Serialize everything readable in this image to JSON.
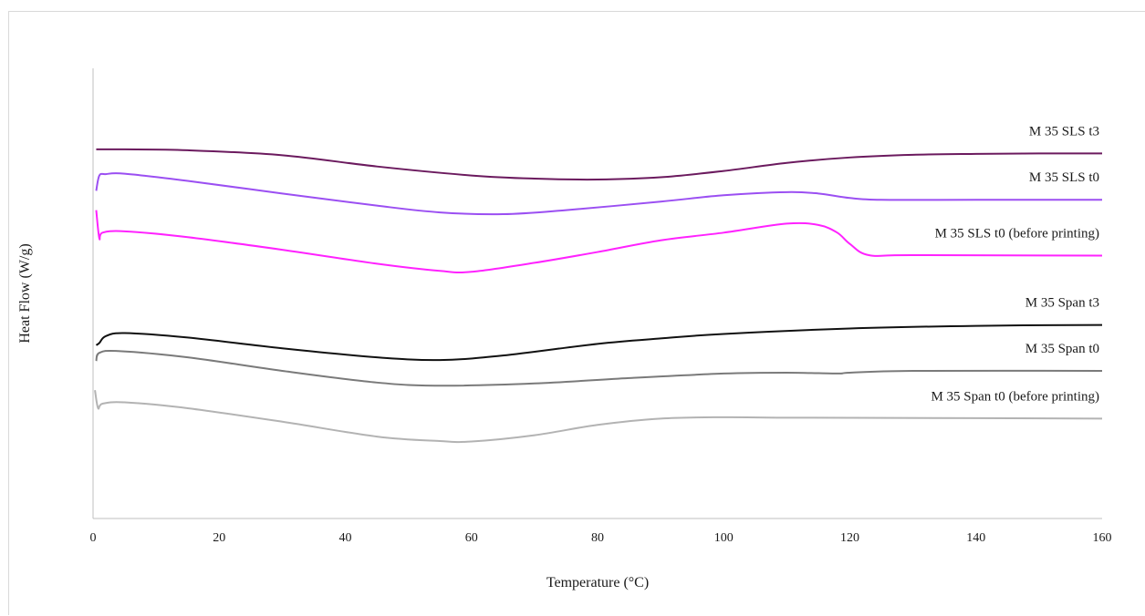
{
  "chart_data": {
    "type": "line",
    "title": "",
    "xlabel": "Temperature (°C)",
    "ylabel": "Heat Flow (W/g)",
    "xlim": [
      0,
      160
    ],
    "x_ticks": [
      0,
      20,
      40,
      60,
      80,
      100,
      120,
      140,
      160
    ],
    "y_ticks_shown": false,
    "grid": false,
    "legend": "none (series labelled directly on the plot)",
    "y_units_note": "relative, stacked curves (no y tick labels shown)",
    "series": [
      {
        "name": "M 35 SLS t3",
        "color": "#6b1a5e",
        "label_position": "above-right",
        "points": [
          [
            0.5,
            8.2
          ],
          [
            5,
            8.2
          ],
          [
            15,
            8.18
          ],
          [
            30,
            8.07
          ],
          [
            45,
            7.82
          ],
          [
            60,
            7.62
          ],
          [
            70,
            7.55
          ],
          [
            80,
            7.53
          ],
          [
            90,
            7.58
          ],
          [
            100,
            7.72
          ],
          [
            110,
            7.9
          ],
          [
            120,
            8.02
          ],
          [
            130,
            8.08
          ],
          [
            140,
            8.1
          ],
          [
            150,
            8.11
          ],
          [
            160,
            8.11
          ]
        ]
      },
      {
        "name": "M 35 SLS t0",
        "color": "#9b4ff2",
        "label_position": "above-right",
        "points": [
          [
            0.5,
            7.28
          ],
          [
            1,
            7.62
          ],
          [
            2,
            7.65
          ],
          [
            5,
            7.66
          ],
          [
            15,
            7.5
          ],
          [
            30,
            7.22
          ],
          [
            45,
            6.95
          ],
          [
            55,
            6.8
          ],
          [
            65,
            6.76
          ],
          [
            75,
            6.85
          ],
          [
            90,
            7.04
          ],
          [
            100,
            7.18
          ],
          [
            110,
            7.25
          ],
          [
            115,
            7.22
          ],
          [
            120,
            7.12
          ],
          [
            125,
            7.08
          ],
          [
            140,
            7.08
          ],
          [
            160,
            7.08
          ]
        ]
      },
      {
        "name": "M 35 SLS t0 (before printing)",
        "color": "#ff22ff",
        "label_position": "above-right",
        "points": [
          [
            0.5,
            6.85
          ],
          [
            1,
            6.22
          ],
          [
            1.5,
            6.35
          ],
          [
            5,
            6.38
          ],
          [
            15,
            6.25
          ],
          [
            30,
            5.97
          ],
          [
            45,
            5.66
          ],
          [
            55,
            5.5
          ],
          [
            60,
            5.48
          ],
          [
            70,
            5.68
          ],
          [
            80,
            5.92
          ],
          [
            90,
            6.18
          ],
          [
            100,
            6.35
          ],
          [
            110,
            6.55
          ],
          [
            115,
            6.52
          ],
          [
            118,
            6.35
          ],
          [
            120,
            6.1
          ],
          [
            123,
            5.85
          ],
          [
            130,
            5.85
          ],
          [
            160,
            5.84
          ]
        ]
      },
      {
        "name": "M 35 Span t3",
        "color": "#111111",
        "label_position": "above-right",
        "points": [
          [
            0.5,
            3.85
          ],
          [
            1,
            3.9
          ],
          [
            2,
            4.05
          ],
          [
            5,
            4.12
          ],
          [
            15,
            4.02
          ],
          [
            30,
            3.78
          ],
          [
            45,
            3.58
          ],
          [
            55,
            3.52
          ],
          [
            65,
            3.62
          ],
          [
            80,
            3.88
          ],
          [
            90,
            4.0
          ],
          [
            100,
            4.1
          ],
          [
            120,
            4.22
          ],
          [
            140,
            4.28
          ],
          [
            160,
            4.3
          ]
        ]
      },
      {
        "name": "M 35 Span t0",
        "color": "#7a7a7a",
        "label_position": "above-right",
        "points": [
          [
            0.5,
            3.5
          ],
          [
            1,
            3.68
          ],
          [
            4,
            3.72
          ],
          [
            15,
            3.58
          ],
          [
            30,
            3.28
          ],
          [
            45,
            3.02
          ],
          [
            55,
            2.95
          ],
          [
            70,
            3.0
          ],
          [
            85,
            3.12
          ],
          [
            100,
            3.22
          ],
          [
            110,
            3.24
          ],
          [
            118,
            3.22
          ],
          [
            120,
            3.24
          ],
          [
            130,
            3.28
          ],
          [
            160,
            3.28
          ]
        ]
      },
      {
        "name": "M 35 Span t0 (before printing)",
        "color": "#b3b3b3",
        "label_position": "above-right",
        "points": [
          [
            0.3,
            2.85
          ],
          [
            0.8,
            2.45
          ],
          [
            1.5,
            2.55
          ],
          [
            5,
            2.58
          ],
          [
            15,
            2.45
          ],
          [
            30,
            2.15
          ],
          [
            45,
            1.82
          ],
          [
            55,
            1.72
          ],
          [
            60,
            1.71
          ],
          [
            70,
            1.85
          ],
          [
            80,
            2.08
          ],
          [
            90,
            2.22
          ],
          [
            100,
            2.25
          ],
          [
            110,
            2.24
          ],
          [
            140,
            2.23
          ],
          [
            160,
            2.22
          ]
        ]
      }
    ]
  }
}
